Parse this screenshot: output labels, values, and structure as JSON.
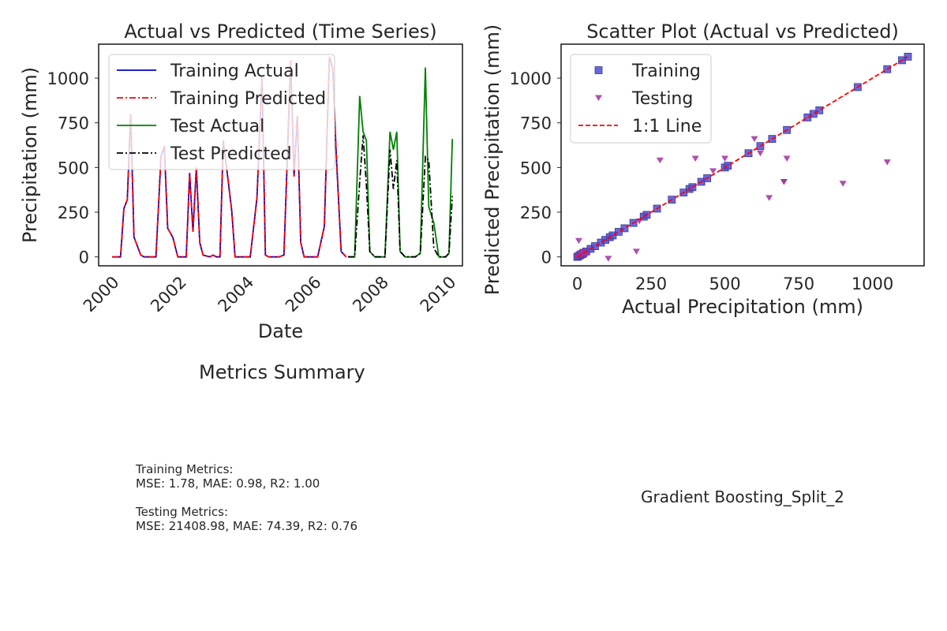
{
  "chart_data": [
    {
      "type": "line",
      "title": "Actual vs Predicted (Time Series)",
      "xlabel": "Date",
      "ylabel": "Precipitation (mm)",
      "xlim": [
        1999.6,
        2010.4
      ],
      "ylim": [
        -50,
        1190
      ],
      "xticks": [
        2000,
        2002,
        2004,
        2006,
        2008,
        2010
      ],
      "xtick_labels": [
        "2000",
        "2002",
        "2004",
        "2006",
        "2008",
        "2010"
      ],
      "yticks": [
        0,
        250,
        500,
        750,
        1000
      ],
      "ytick_labels": [
        "0",
        "250",
        "500",
        "750",
        "1000"
      ],
      "legend_position": "top-left",
      "grid": false,
      "series": [
        {
          "name": "Training Actual",
          "color": "#0000cc",
          "dash": "solid",
          "x": [
            2000.0,
            2000.25,
            2000.35,
            2000.45,
            2000.55,
            2000.65,
            2000.85,
            2000.95,
            2001.1,
            2001.3,
            2001.45,
            2001.55,
            2001.65,
            2001.8,
            2001.95,
            2002.05,
            2002.2,
            2002.3,
            2002.4,
            2002.5,
            2002.6,
            2002.7,
            2002.9,
            2003.0,
            2003.1,
            2003.2,
            2003.3,
            2003.45,
            2003.55,
            2003.65,
            2003.8,
            2003.95,
            2004.1,
            2004.3,
            2004.45,
            2004.55,
            2004.65,
            2004.8,
            2004.95,
            2005.1,
            2005.3,
            2005.4,
            2005.5,
            2005.6,
            2005.7,
            2005.8,
            2005.95,
            2006.1,
            2006.3,
            2006.45,
            2006.55,
            2006.65,
            2006.8,
            2006.95
          ],
          "y": [
            0,
            0,
            270,
            320,
            800,
            110,
            10,
            0,
            0,
            0,
            560,
            620,
            160,
            110,
            0,
            0,
            0,
            470,
            140,
            500,
            80,
            10,
            0,
            10,
            0,
            0,
            650,
            420,
            260,
            0,
            0,
            0,
            0,
            330,
            1010,
            10,
            0,
            0,
            0,
            10,
            1100,
            450,
            790,
            80,
            0,
            0,
            0,
            0,
            170,
            1120,
            1050,
            590,
            30,
            0
          ]
        },
        {
          "name": "Training Predicted",
          "color": "#ff0000",
          "dash": "dashdot",
          "x": [
            2000.0,
            2000.25,
            2000.35,
            2000.45,
            2000.55,
            2000.65,
            2000.85,
            2000.95,
            2001.1,
            2001.3,
            2001.45,
            2001.55,
            2001.65,
            2001.8,
            2001.95,
            2002.05,
            2002.2,
            2002.3,
            2002.4,
            2002.5,
            2002.6,
            2002.7,
            2002.9,
            2003.0,
            2003.1,
            2003.2,
            2003.3,
            2003.45,
            2003.55,
            2003.65,
            2003.8,
            2003.95,
            2004.1,
            2004.3,
            2004.45,
            2004.55,
            2004.65,
            2004.8,
            2004.95,
            2005.1,
            2005.3,
            2005.4,
            2005.5,
            2005.6,
            2005.7,
            2005.8,
            2005.95,
            2006.1,
            2006.3,
            2006.45,
            2006.55,
            2006.65,
            2006.8,
            2006.95
          ],
          "y": [
            0,
            0,
            270,
            320,
            800,
            110,
            10,
            0,
            0,
            0,
            560,
            620,
            160,
            110,
            0,
            0,
            0,
            470,
            140,
            500,
            80,
            10,
            0,
            10,
            0,
            0,
            650,
            420,
            260,
            0,
            0,
            0,
            0,
            330,
            1010,
            10,
            0,
            0,
            0,
            10,
            1100,
            450,
            790,
            80,
            0,
            0,
            0,
            0,
            170,
            1120,
            1050,
            590,
            30,
            0
          ]
        },
        {
          "name": "Test Actual",
          "color": "#008000",
          "dash": "solid",
          "x": [
            2007.0,
            2007.2,
            2007.35,
            2007.45,
            2007.55,
            2007.65,
            2007.8,
            2007.95,
            2008.1,
            2008.25,
            2008.35,
            2008.45,
            2008.55,
            2008.7,
            2008.85,
            2009.0,
            2009.15,
            2009.3,
            2009.4,
            2009.55,
            2009.7,
            2009.8,
            2009.9,
            2010.0,
            2010.1
          ],
          "y": [
            0,
            0,
            900,
            700,
            650,
            30,
            0,
            0,
            0,
            700,
            600,
            700,
            30,
            0,
            0,
            0,
            20,
            1060,
            280,
            190,
            0,
            0,
            0,
            20,
            660
          ]
        },
        {
          "name": "Test Predicted",
          "color": "#000000",
          "dash": "dashdot",
          "x": [
            2007.0,
            2007.2,
            2007.35,
            2007.45,
            2007.55,
            2007.65,
            2007.8,
            2007.95,
            2008.1,
            2008.25,
            2008.35,
            2008.45,
            2008.55,
            2008.7,
            2008.85,
            2009.0,
            2009.15,
            2009.3,
            2009.4,
            2009.55,
            2009.7,
            2009.8,
            2009.9,
            2010.0,
            2010.1
          ],
          "y": [
            0,
            0,
            420,
            680,
            400,
            30,
            0,
            0,
            0,
            600,
            380,
            540,
            30,
            0,
            0,
            0,
            20,
            560,
            540,
            50,
            0,
            0,
            0,
            20,
            340
          ]
        }
      ]
    },
    {
      "type": "scatter",
      "title": "Scatter Plot (Actual vs Predicted)",
      "xlabel": "Actual Precipitation (mm)",
      "ylabel": "Predicted Precipitation (mm)",
      "xlim": [
        -55,
        1175
      ],
      "ylim": [
        -50,
        1190
      ],
      "xticks": [
        0,
        250,
        500,
        750,
        1000
      ],
      "xtick_labels": [
        "0",
        "250",
        "500",
        "750",
        "1000"
      ],
      "yticks": [
        0,
        250,
        500,
        750,
        1000
      ],
      "ytick_labels": [
        "0",
        "250",
        "500",
        "750",
        "1000"
      ],
      "legend_position": "top-left",
      "grid": false,
      "series": [
        {
          "name": "Training",
          "marker": "square",
          "color": "#4f4fd9",
          "x": [
            0,
            5,
            10,
            15,
            20,
            30,
            45,
            60,
            80,
            95,
            110,
            120,
            140,
            160,
            190,
            225,
            235,
            270,
            320,
            360,
            380,
            390,
            420,
            440,
            500,
            510,
            580,
            620,
            660,
            710,
            780,
            800,
            820,
            950,
            1050,
            1100,
            1120
          ],
          "y": [
            0,
            5,
            10,
            15,
            20,
            30,
            45,
            60,
            80,
            95,
            110,
            120,
            140,
            160,
            190,
            225,
            235,
            270,
            320,
            360,
            380,
            390,
            420,
            440,
            500,
            510,
            580,
            620,
            660,
            710,
            780,
            800,
            820,
            950,
            1050,
            1100,
            1120
          ]
        },
        {
          "name": "Testing",
          "marker": "triangle-down",
          "color": "#a030a0",
          "x": [
            0,
            5,
            10,
            20,
            30,
            15,
            105,
            200,
            210,
            280,
            400,
            460,
            500,
            600,
            620,
            650,
            700,
            710,
            700,
            900,
            1050
          ],
          "y": [
            0,
            90,
            20,
            30,
            10,
            5,
            -10,
            30,
            200,
            540,
            550,
            480,
            550,
            660,
            580,
            330,
            420,
            550,
            420,
            410,
            530
          ]
        },
        {
          "name": "1:1 Line",
          "marker": "line",
          "color": "#ff0000",
          "dash": "dashed",
          "x": [
            0,
            1120
          ],
          "y": [
            0,
            1120
          ]
        }
      ]
    }
  ],
  "summary": {
    "title": "Metrics Summary",
    "text": "Training Metrics:\nMSE: 1.78, MAE: 0.98, R2: 1.00\n\nTesting Metrics:\nMSE: 21408.98, MAE: 74.39, R2: 0.76"
  },
  "model_name": "Gradient Boosting_Split_2"
}
